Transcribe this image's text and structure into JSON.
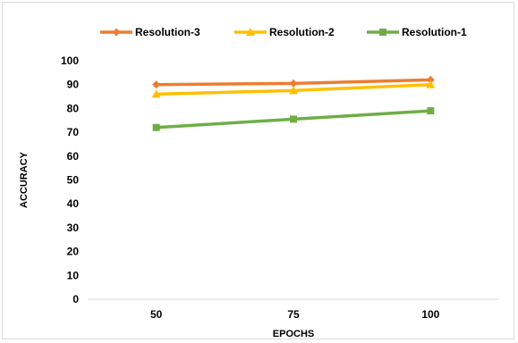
{
  "chart_data": {
    "type": "line",
    "title": "",
    "xlabel": "EPOCHS",
    "ylabel": "ACCURACY",
    "categories": [
      "50",
      "75",
      "100"
    ],
    "ylim": [
      0,
      100
    ],
    "yticks": [
      0,
      10,
      20,
      30,
      40,
      50,
      60,
      70,
      80,
      90,
      100
    ],
    "grid": false,
    "legend_position": "top",
    "series": [
      {
        "name": "Resolution-3",
        "values": [
          90,
          90.5,
          92
        ],
        "color": "#ed7d31",
        "marker": "diamond"
      },
      {
        "name": "Resolution-2",
        "values": [
          86,
          87.5,
          90
        ],
        "color": "#ffc000",
        "marker": "triangle"
      },
      {
        "name": "Resolution-1",
        "values": [
          72,
          75.5,
          79
        ],
        "color": "#70ad47",
        "marker": "square"
      }
    ]
  }
}
